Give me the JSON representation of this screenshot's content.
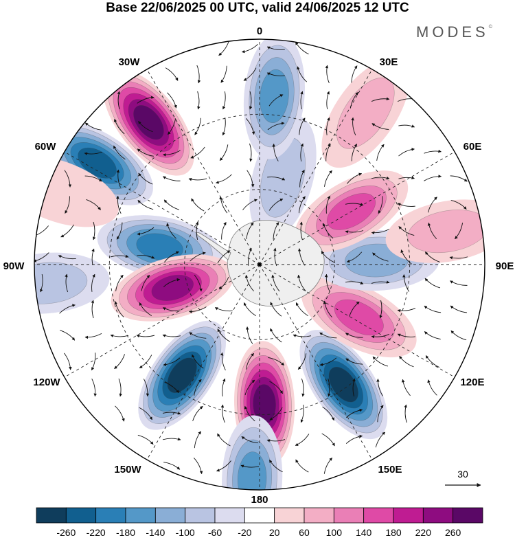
{
  "title": "Base 22/06/2025 00 UTC, valid 24/06/2025 12 UTC",
  "brand": "MODES",
  "brand_mark": "©",
  "map": {
    "projection": "south-polar-stereographic",
    "longitude_labels": [
      "0",
      "30E",
      "60E",
      "90E",
      "120E",
      "150E",
      "180",
      "150W",
      "120W",
      "90W",
      "60W",
      "30W"
    ],
    "vector_reference": {
      "value": "30"
    },
    "anomaly_centers": [
      {
        "lon": -38,
        "colat": 0.8,
        "value": 270
      },
      {
        "lon": -58,
        "colat": 0.85,
        "value": -240
      },
      {
        "lon": -80,
        "colat": 0.45,
        "value": -180
      },
      {
        "lon": -105,
        "colat": 0.4,
        "value": 240
      },
      {
        "lon": -145,
        "colat": 0.6,
        "value": -260
      },
      {
        "lon": 178,
        "colat": 0.62,
        "value": 270
      },
      {
        "lon": 145,
        "colat": 0.65,
        "value": -260
      },
      {
        "lon": 118,
        "colat": 0.5,
        "value": 150
      },
      {
        "lon": 88,
        "colat": 0.52,
        "value": -110
      },
      {
        "lon": 60,
        "colat": 0.47,
        "value": 160
      },
      {
        "lon": 15,
        "colat": 0.4,
        "value": -80
      },
      {
        "lon": 5,
        "colat": 0.75,
        "value": -160
      },
      {
        "lon": -178,
        "colat": 0.95,
        "value": -150
      },
      {
        "lon": -95,
        "colat": 0.95,
        "value": -70
      },
      {
        "lon": 35,
        "colat": 0.82,
        "value": 60
      },
      {
        "lon": 80,
        "colat": 0.85,
        "value": 60
      },
      {
        "lon": -70,
        "colat": 0.95,
        "value": 50
      }
    ]
  },
  "colorbar": {
    "colors": [
      "#0f3d5c",
      "#115f8f",
      "#2a7fb6",
      "#5498c8",
      "#8aaed6",
      "#b9c4e2",
      "#dcdcef",
      "#ffffff",
      "#f8d3d6",
      "#f3aec5",
      "#ea7fb6",
      "#df4aa6",
      "#bf1c92",
      "#8e0c80",
      "#5a0866"
    ],
    "ticks": [
      "-260",
      "-220",
      "-180",
      "-140",
      "-100",
      "-60",
      "-20",
      "20",
      "60",
      "100",
      "140",
      "180",
      "220",
      "260"
    ]
  }
}
